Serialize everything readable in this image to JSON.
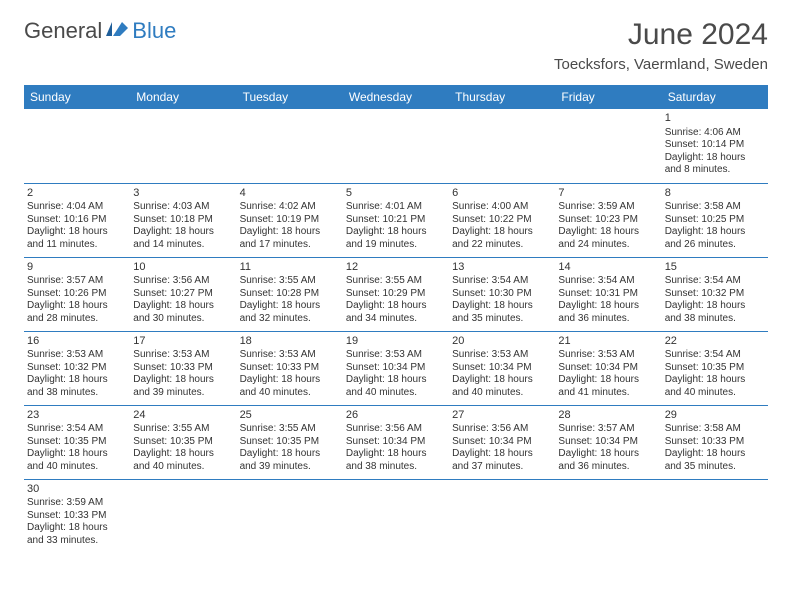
{
  "brand": {
    "name1": "General",
    "name2": "Blue",
    "name1_color": "#4a4a4a",
    "name2_color": "#2f7cc0"
  },
  "title": "June 2024",
  "location": "Toecksfors, Vaermland, Sweden",
  "colors": {
    "header_bg": "#2f7cc0",
    "header_text": "#ffffff",
    "border": "#2f7cc0",
    "text": "#333333",
    "background": "#ffffff"
  },
  "day_headers": [
    "Sunday",
    "Monday",
    "Tuesday",
    "Wednesday",
    "Thursday",
    "Friday",
    "Saturday"
  ],
  "weeks": [
    [
      null,
      null,
      null,
      null,
      null,
      null,
      {
        "n": "1",
        "sunrise": "Sunrise: 4:06 AM",
        "sunset": "Sunset: 10:14 PM",
        "daylight1": "Daylight: 18 hours",
        "daylight2": "and 8 minutes."
      }
    ],
    [
      {
        "n": "2",
        "sunrise": "Sunrise: 4:04 AM",
        "sunset": "Sunset: 10:16 PM",
        "daylight1": "Daylight: 18 hours",
        "daylight2": "and 11 minutes."
      },
      {
        "n": "3",
        "sunrise": "Sunrise: 4:03 AM",
        "sunset": "Sunset: 10:18 PM",
        "daylight1": "Daylight: 18 hours",
        "daylight2": "and 14 minutes."
      },
      {
        "n": "4",
        "sunrise": "Sunrise: 4:02 AM",
        "sunset": "Sunset: 10:19 PM",
        "daylight1": "Daylight: 18 hours",
        "daylight2": "and 17 minutes."
      },
      {
        "n": "5",
        "sunrise": "Sunrise: 4:01 AM",
        "sunset": "Sunset: 10:21 PM",
        "daylight1": "Daylight: 18 hours",
        "daylight2": "and 19 minutes."
      },
      {
        "n": "6",
        "sunrise": "Sunrise: 4:00 AM",
        "sunset": "Sunset: 10:22 PM",
        "daylight1": "Daylight: 18 hours",
        "daylight2": "and 22 minutes."
      },
      {
        "n": "7",
        "sunrise": "Sunrise: 3:59 AM",
        "sunset": "Sunset: 10:23 PM",
        "daylight1": "Daylight: 18 hours",
        "daylight2": "and 24 minutes."
      },
      {
        "n": "8",
        "sunrise": "Sunrise: 3:58 AM",
        "sunset": "Sunset: 10:25 PM",
        "daylight1": "Daylight: 18 hours",
        "daylight2": "and 26 minutes."
      }
    ],
    [
      {
        "n": "9",
        "sunrise": "Sunrise: 3:57 AM",
        "sunset": "Sunset: 10:26 PM",
        "daylight1": "Daylight: 18 hours",
        "daylight2": "and 28 minutes."
      },
      {
        "n": "10",
        "sunrise": "Sunrise: 3:56 AM",
        "sunset": "Sunset: 10:27 PM",
        "daylight1": "Daylight: 18 hours",
        "daylight2": "and 30 minutes."
      },
      {
        "n": "11",
        "sunrise": "Sunrise: 3:55 AM",
        "sunset": "Sunset: 10:28 PM",
        "daylight1": "Daylight: 18 hours",
        "daylight2": "and 32 minutes."
      },
      {
        "n": "12",
        "sunrise": "Sunrise: 3:55 AM",
        "sunset": "Sunset: 10:29 PM",
        "daylight1": "Daylight: 18 hours",
        "daylight2": "and 34 minutes."
      },
      {
        "n": "13",
        "sunrise": "Sunrise: 3:54 AM",
        "sunset": "Sunset: 10:30 PM",
        "daylight1": "Daylight: 18 hours",
        "daylight2": "and 35 minutes."
      },
      {
        "n": "14",
        "sunrise": "Sunrise: 3:54 AM",
        "sunset": "Sunset: 10:31 PM",
        "daylight1": "Daylight: 18 hours",
        "daylight2": "and 36 minutes."
      },
      {
        "n": "15",
        "sunrise": "Sunrise: 3:54 AM",
        "sunset": "Sunset: 10:32 PM",
        "daylight1": "Daylight: 18 hours",
        "daylight2": "and 38 minutes."
      }
    ],
    [
      {
        "n": "16",
        "sunrise": "Sunrise: 3:53 AM",
        "sunset": "Sunset: 10:32 PM",
        "daylight1": "Daylight: 18 hours",
        "daylight2": "and 38 minutes."
      },
      {
        "n": "17",
        "sunrise": "Sunrise: 3:53 AM",
        "sunset": "Sunset: 10:33 PM",
        "daylight1": "Daylight: 18 hours",
        "daylight2": "and 39 minutes."
      },
      {
        "n": "18",
        "sunrise": "Sunrise: 3:53 AM",
        "sunset": "Sunset: 10:33 PM",
        "daylight1": "Daylight: 18 hours",
        "daylight2": "and 40 minutes."
      },
      {
        "n": "19",
        "sunrise": "Sunrise: 3:53 AM",
        "sunset": "Sunset: 10:34 PM",
        "daylight1": "Daylight: 18 hours",
        "daylight2": "and 40 minutes."
      },
      {
        "n": "20",
        "sunrise": "Sunrise: 3:53 AM",
        "sunset": "Sunset: 10:34 PM",
        "daylight1": "Daylight: 18 hours",
        "daylight2": "and 40 minutes."
      },
      {
        "n": "21",
        "sunrise": "Sunrise: 3:53 AM",
        "sunset": "Sunset: 10:34 PM",
        "daylight1": "Daylight: 18 hours",
        "daylight2": "and 41 minutes."
      },
      {
        "n": "22",
        "sunrise": "Sunrise: 3:54 AM",
        "sunset": "Sunset: 10:35 PM",
        "daylight1": "Daylight: 18 hours",
        "daylight2": "and 40 minutes."
      }
    ],
    [
      {
        "n": "23",
        "sunrise": "Sunrise: 3:54 AM",
        "sunset": "Sunset: 10:35 PM",
        "daylight1": "Daylight: 18 hours",
        "daylight2": "and 40 minutes."
      },
      {
        "n": "24",
        "sunrise": "Sunrise: 3:55 AM",
        "sunset": "Sunset: 10:35 PM",
        "daylight1": "Daylight: 18 hours",
        "daylight2": "and 40 minutes."
      },
      {
        "n": "25",
        "sunrise": "Sunrise: 3:55 AM",
        "sunset": "Sunset: 10:35 PM",
        "daylight1": "Daylight: 18 hours",
        "daylight2": "and 39 minutes."
      },
      {
        "n": "26",
        "sunrise": "Sunrise: 3:56 AM",
        "sunset": "Sunset: 10:34 PM",
        "daylight1": "Daylight: 18 hours",
        "daylight2": "and 38 minutes."
      },
      {
        "n": "27",
        "sunrise": "Sunrise: 3:56 AM",
        "sunset": "Sunset: 10:34 PM",
        "daylight1": "Daylight: 18 hours",
        "daylight2": "and 37 minutes."
      },
      {
        "n": "28",
        "sunrise": "Sunrise: 3:57 AM",
        "sunset": "Sunset: 10:34 PM",
        "daylight1": "Daylight: 18 hours",
        "daylight2": "and 36 minutes."
      },
      {
        "n": "29",
        "sunrise": "Sunrise: 3:58 AM",
        "sunset": "Sunset: 10:33 PM",
        "daylight1": "Daylight: 18 hours",
        "daylight2": "and 35 minutes."
      }
    ],
    [
      {
        "n": "30",
        "sunrise": "Sunrise: 3:59 AM",
        "sunset": "Sunset: 10:33 PM",
        "daylight1": "Daylight: 18 hours",
        "daylight2": "and 33 minutes."
      },
      null,
      null,
      null,
      null,
      null,
      null
    ]
  ]
}
